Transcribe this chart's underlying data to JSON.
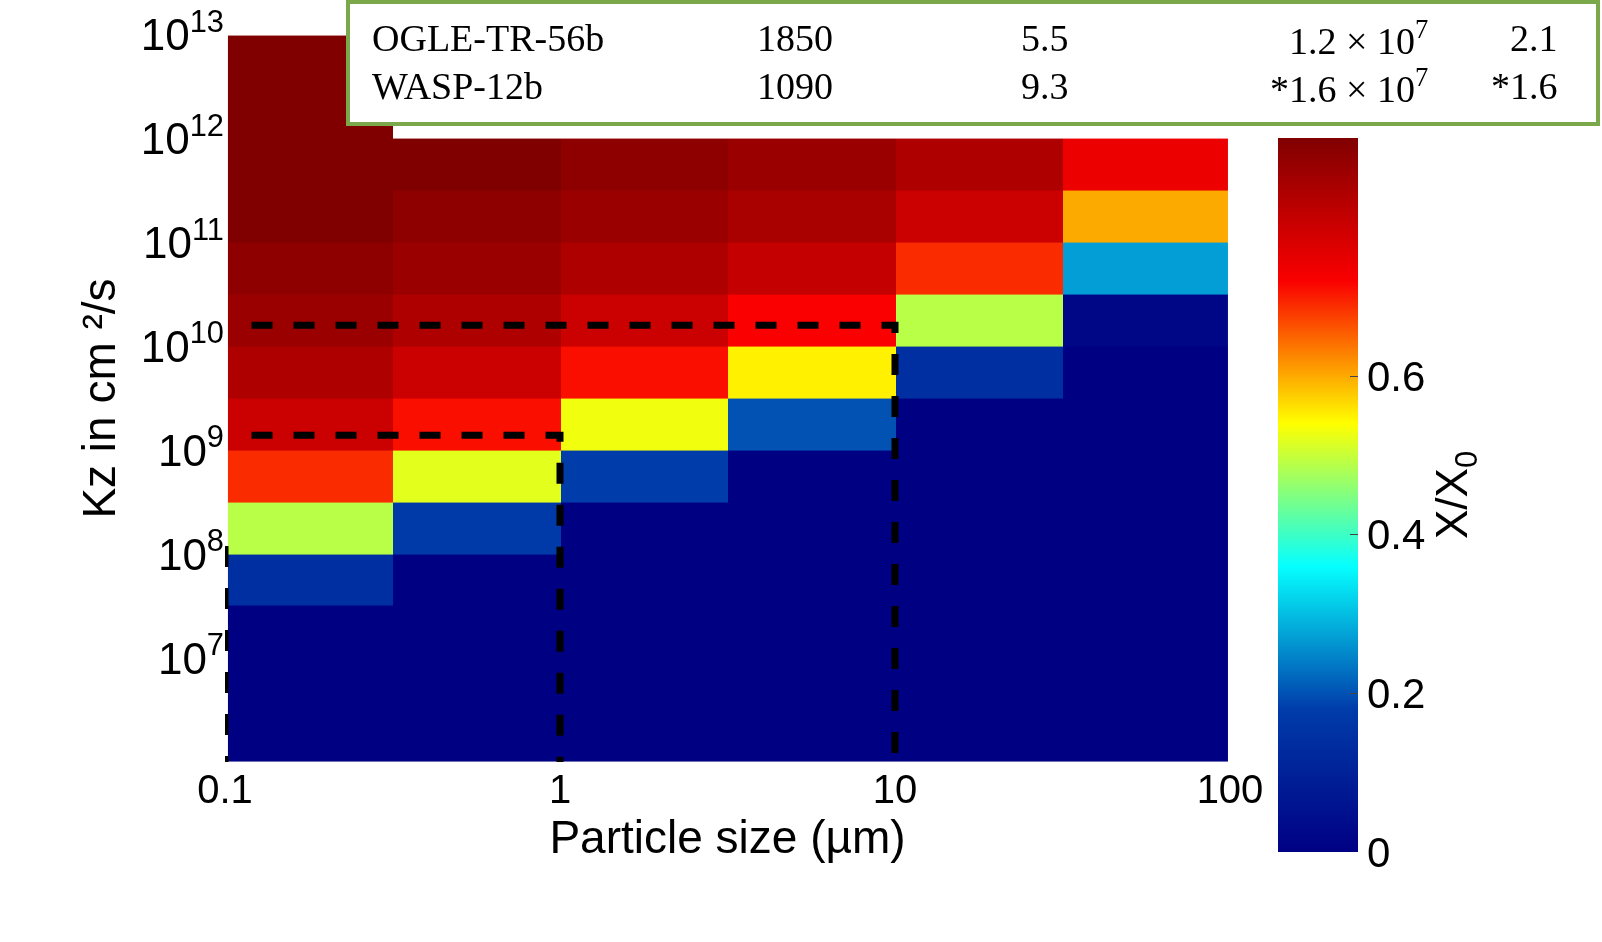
{
  "chart_data": {
    "type": "heatmap",
    "xlabel": "Particle size (µm)",
    "ylabel": "Kz in cm ²/s",
    "clabel": "X/X$_{0}$",
    "x": [
      0.18,
      0.56,
      1.8,
      5.6,
      18,
      56
    ],
    "y": [
      5600000000000.0,
      1800000000000.0,
      560000000000.0,
      180000000000.0,
      56000000000.0,
      18000000000.0,
      5600000000.0,
      1800000000.0,
      560000000.0,
      180000000.0,
      56000000.0,
      18000000.0,
      5600000.0,
      1800000.0
    ],
    "cells": [
      [
        0.9,
        null,
        null,
        null,
        null,
        null
      ],
      [
        0.9,
        null,
        null,
        null,
        null,
        null
      ],
      [
        0.9,
        0.9,
        0.88,
        0.86,
        0.83,
        0.74
      ],
      [
        0.9,
        0.88,
        0.86,
        0.84,
        0.79,
        0.6
      ],
      [
        0.88,
        0.86,
        0.83,
        0.8,
        0.69,
        0.27
      ],
      [
        0.86,
        0.83,
        0.79,
        0.72,
        0.49,
        0.02
      ],
      [
        0.83,
        0.79,
        0.71,
        0.55,
        0.14,
        0
      ],
      [
        0.79,
        0.71,
        0.53,
        0.2,
        0,
        0
      ],
      [
        0.69,
        0.52,
        0.18,
        0,
        0,
        0
      ],
      [
        0.49,
        0.17,
        0,
        0,
        0,
        0
      ],
      [
        0.14,
        0,
        0,
        0,
        0,
        0
      ],
      [
        0,
        0,
        0,
        0,
        0,
        0
      ],
      [
        0,
        0,
        0,
        0,
        0,
        0
      ],
      [
        0,
        0,
        0,
        0,
        0,
        0
      ]
    ],
    "clim": [
      0,
      0.9
    ],
    "cticks": [
      0,
      0.2,
      0.4,
      0.6
    ],
    "log": "xy",
    "xlim": [
      0.1,
      100
    ],
    "xticks": [
      0.1,
      1,
      10,
      100
    ],
    "ylim": [
      1000000.0,
      10000000000000.0
    ],
    "yticks": [
      {
        "value": 10000000.0,
        "label": "10$^{7}$"
      },
      {
        "value": 100000000.0,
        "label": "10$^{8}$"
      },
      {
        "value": 1000000000.0,
        "label": "10$^{9}$"
      },
      {
        "value": 10000000000.0,
        "label": "10$^{10}$"
      },
      {
        "value": 100000000000.0,
        "label": "10$^{11}$"
      },
      {
        "value": 1000000000000.0,
        "label": "10$^{12}$"
      },
      {
        "value": 10000000000000.0,
        "label": "10$^{13}$"
      }
    ],
    "series": [
      {
        "type": "line",
        "color": "#000000",
        "line_style": "dashed",
        "x": [
          0.12,
          1,
          1
        ],
        "values": [
          1400000000.0,
          1400000000.0,
          1000000.0
        ]
      },
      {
        "type": "line",
        "color": "#000000",
        "line_style": "dashed",
        "x": [
          0.12,
          10,
          10
        ],
        "values": [
          16000000000.0,
          16000000000.0,
          1000000.0
        ]
      },
      {
        "type": "line",
        "color": "#000000",
        "line_style": "dashed",
        "x": [
          0.1,
          0.1
        ],
        "values": [
          120000000.0,
          1000000.0
        ]
      }
    ],
    "annotations": [
      "OGLE-TR-56b",
      "1850",
      "5.5",
      "1.2 × 10$^{7}$",
      "2.1",
      "WASP-12b",
      "1090",
      "9.3",
      "*1.6 × 10$^{7}$",
      "*1.6"
    ]
  }
}
